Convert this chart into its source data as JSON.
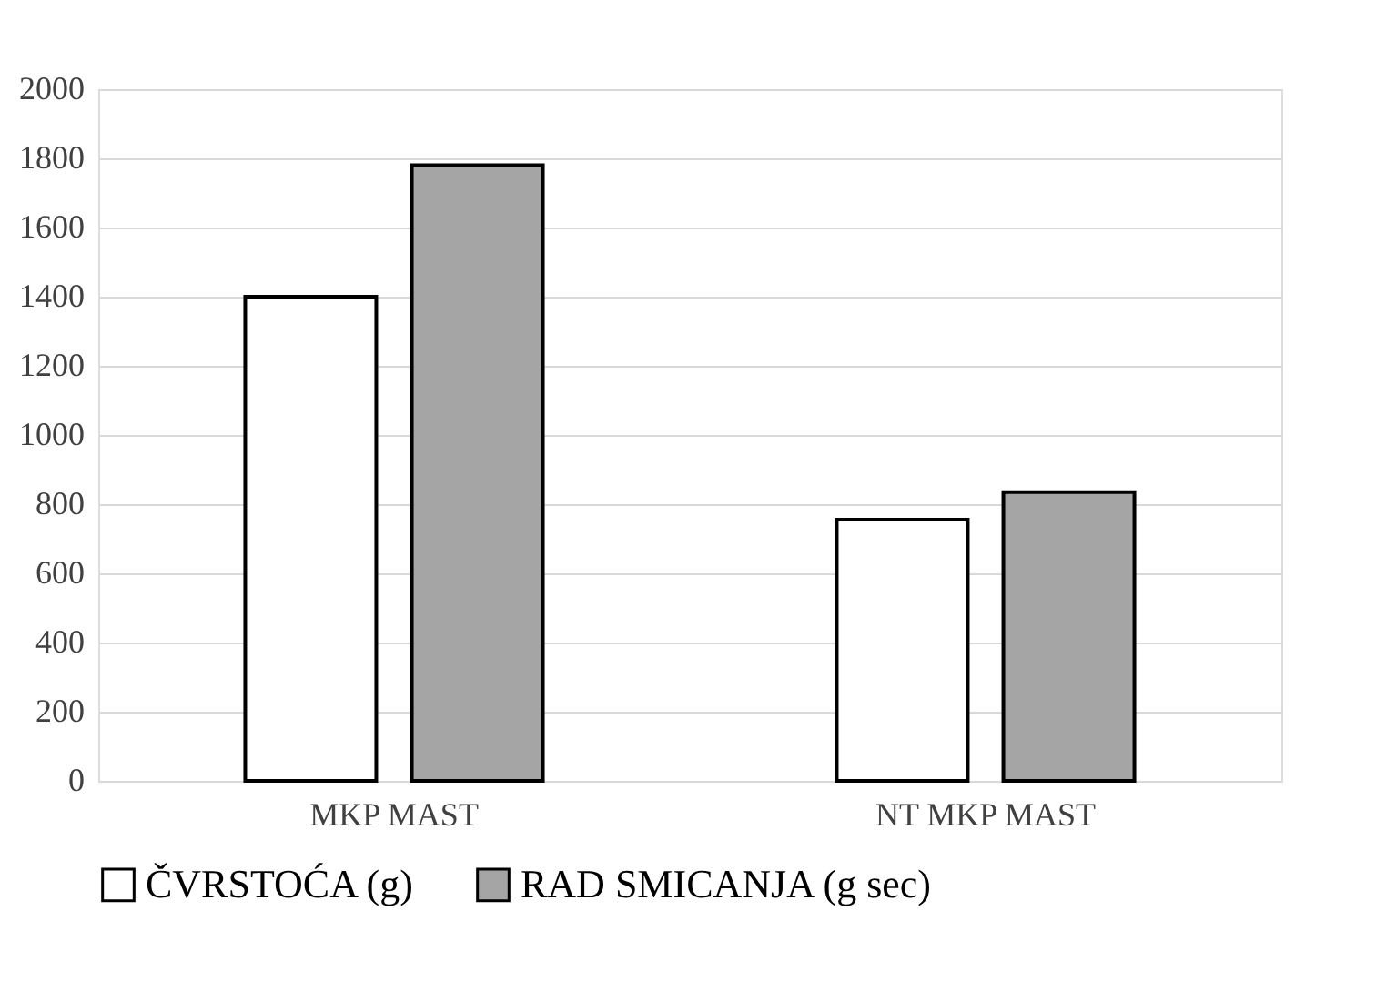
{
  "chart_data": {
    "type": "bar",
    "categories": [
      "MKP MAST",
      "NT MKP MAST"
    ],
    "series": [
      {
        "name": "ČVRSTOĆA (g)",
        "color": "#ffffff",
        "values": [
          1400,
          755
        ]
      },
      {
        "name": "RAD SMICANJA (g sec)",
        "color": "#a5a5a5",
        "values": [
          1780,
          835
        ]
      }
    ],
    "ylim": [
      0,
      2000
    ],
    "yticks": [
      0,
      200,
      400,
      600,
      800,
      1000,
      1200,
      1400,
      1600,
      1800,
      2000
    ],
    "grid": "y",
    "legend": "bottom"
  }
}
